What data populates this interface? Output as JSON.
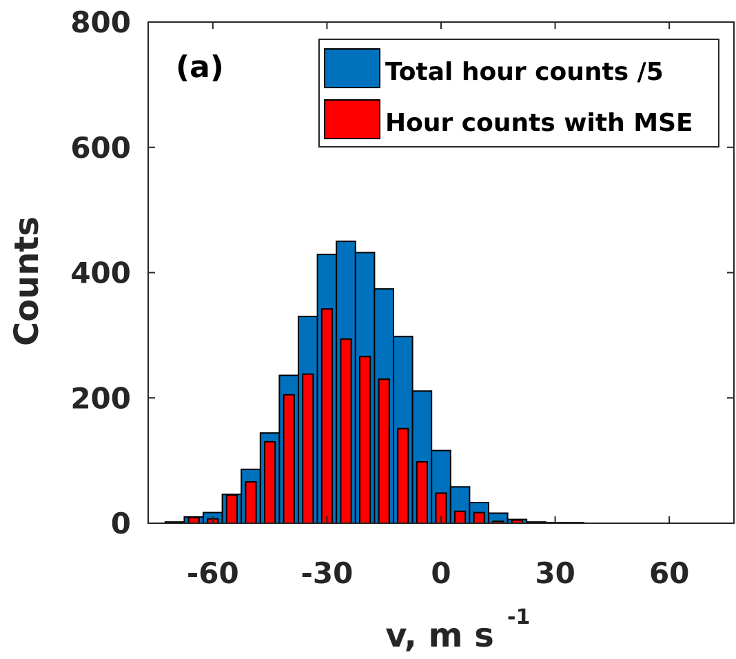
{
  "chart_data": {
    "type": "bar",
    "panel_label": "(a)",
    "xlabel": "v, m s",
    "xlabel_superscript": "-1",
    "ylabel": "Counts",
    "xlim": [
      -77,
      77
    ],
    "ylim": [
      0,
      800
    ],
    "x_ticks": [
      -60,
      -30,
      0,
      30,
      60
    ],
    "x_tick_labels": [
      "-60",
      "-30",
      "0",
      "30",
      "60"
    ],
    "y_ticks": [
      0,
      200,
      400,
      600,
      800
    ],
    "y_tick_labels": [
      "0",
      "200",
      "400",
      "600",
      "800"
    ],
    "bin_centers": [
      -70,
      -65,
      -60,
      -55,
      -50,
      -45,
      -40,
      -35,
      -30,
      -25,
      -20,
      -15,
      -10,
      -5,
      0,
      5,
      10,
      15,
      20,
      25,
      30,
      35,
      40,
      45,
      50,
      55,
      60,
      65,
      70
    ],
    "series": [
      {
        "name": "Total hour counts /5",
        "color": "#0072BD",
        "values": [
          2,
          10,
          17,
          46,
          86,
          144,
          236,
          330,
          429,
          450,
          432,
          374,
          298,
          211,
          116,
          58,
          33,
          16,
          6,
          2,
          1,
          1,
          0,
          0,
          0,
          0,
          0,
          0,
          0
        ]
      },
      {
        "name": "Hour counts with MSE",
        "color": "#FF0000",
        "values": [
          0,
          9,
          7,
          45,
          66,
          130,
          205,
          238,
          342,
          294,
          266,
          230,
          151,
          98,
          48,
          19,
          17,
          3,
          5,
          0,
          0,
          0,
          0,
          0,
          0,
          0,
          0,
          0,
          0
        ]
      }
    ],
    "grid": false,
    "legend_position": "top-right"
  }
}
